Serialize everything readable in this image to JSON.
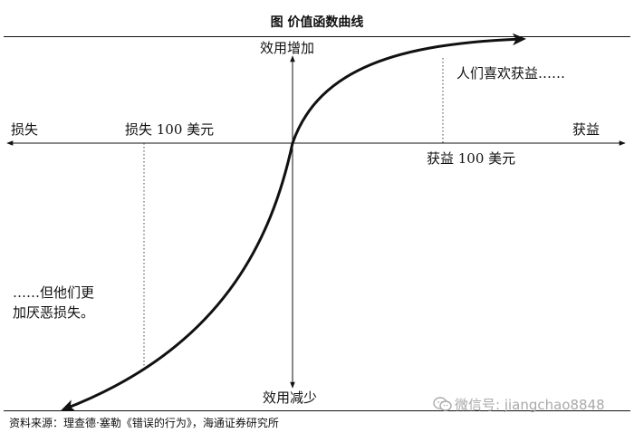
{
  "figure": {
    "title": "图  价值函数曲线",
    "y_axis_top_label": "效用增加",
    "y_axis_bottom_label": "效用减少",
    "x_axis_left_label": "损失",
    "x_axis_right_label": "获益",
    "marker_loss_label": "损失 100 美元",
    "marker_gain_label": "获益 100 美元",
    "annotation_gain": "人们喜欢获益……",
    "annotation_loss_line1": "……但他们更",
    "annotation_loss_line2": "加厌恶损失。"
  },
  "footer": {
    "source": "资料来源：理查德·塞勒《错误的行为》，海通证券研究所",
    "watermark": "微信号: jiangchao8848"
  },
  "icons": {
    "watermark_icon": "wechat-icon"
  }
}
